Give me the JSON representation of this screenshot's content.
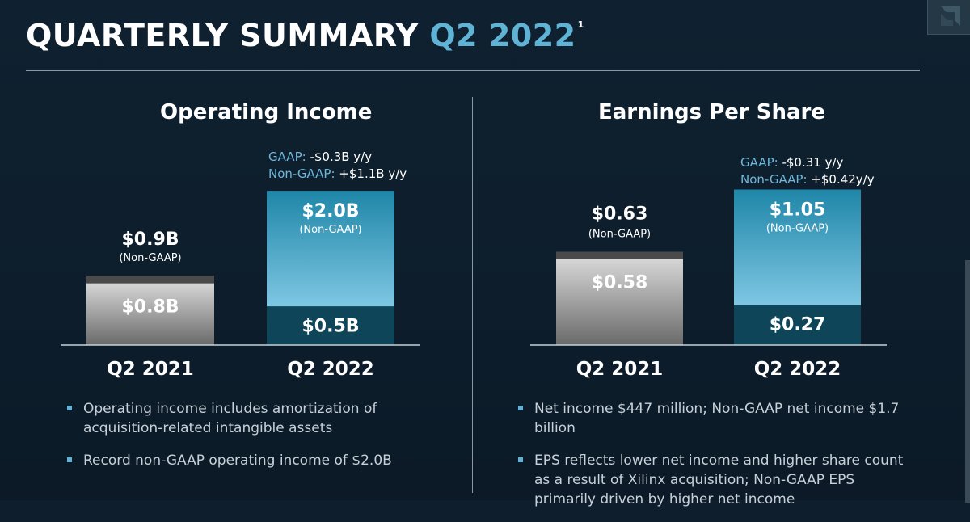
{
  "slide": {
    "title_main": "QUARTERLY SUMMARY",
    "title_accent": "Q2 2022",
    "title_footnote": "1"
  },
  "colors": {
    "accent": "#5fb4d6",
    "gaap_label": "#6fb8da",
    "gray_bar_top": "#d6d6d6",
    "gray_bar_bottom": "#6a6a6a",
    "gray_cap": "#4a4a4a",
    "teal_top": "#1f86a8",
    "teal_bottom": "#7ec7e3",
    "teal_dark": "#0e4559"
  },
  "chart_data": [
    {
      "type": "bar",
      "title": "Operating Income",
      "categories": [
        "Q2 2021",
        "Q2 2022"
      ],
      "series": [
        {
          "name": "GAAP",
          "values": [
            0.8,
            0.5
          ]
        },
        {
          "name": "Non-GAAP",
          "values": [
            0.9,
            2.0
          ]
        }
      ],
      "value_labels": {
        "gaap": [
          "$0.8B",
          "$0.5B"
        ],
        "non_gaap": [
          "$0.9B",
          "$2.0B"
        ]
      },
      "non_gaap_note": "(Non-GAAP)",
      "change": {
        "gaap_label": "GAAP:",
        "gaap_value": "-$0.3B y/y",
        "non_gaap_label": "Non-GAAP:",
        "non_gaap_value": "+$1.1B y/y"
      },
      "ylim": [
        0,
        2.2
      ]
    },
    {
      "type": "bar",
      "title": "Earnings Per Share",
      "categories": [
        "Q2 2021",
        "Q2 2022"
      ],
      "series": [
        {
          "name": "GAAP",
          "values": [
            0.58,
            0.27
          ]
        },
        {
          "name": "Non-GAAP",
          "values": [
            0.63,
            1.05
          ]
        }
      ],
      "value_labels": {
        "gaap": [
          "$0.58",
          "$0.27"
        ],
        "non_gaap": [
          "$0.63",
          "$1.05"
        ]
      },
      "non_gaap_note": "(Non-GAAP)",
      "change": {
        "gaap_label": "GAAP:",
        "gaap_value": "-$0.31 y/y",
        "non_gaap_label": "Non-GAAP:",
        "non_gaap_value": "+$0.42y/y"
      },
      "ylim": [
        0,
        1.2
      ]
    }
  ],
  "left_bullets": [
    "Operating income includes amortization of acquisition-related intangible assets",
    "Record non-GAAP operating income of $2.0B"
  ],
  "right_bullets": [
    "Net income $447 million; Non-GAAP net income $1.7 billion",
    "EPS reflects lower net income and higher share count as a result of Xilinx acquisition; Non-GAAP EPS primarily driven by higher net income"
  ]
}
